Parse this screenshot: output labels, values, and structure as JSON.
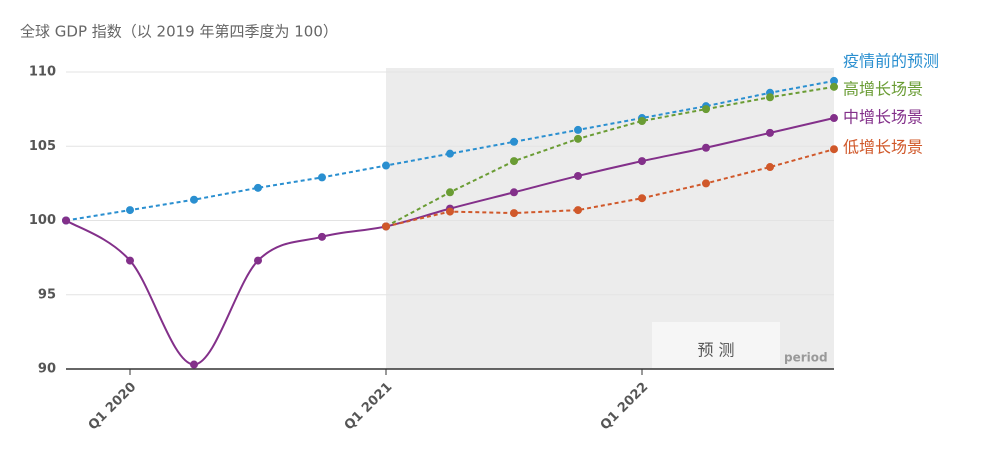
{
  "chart_data": {
    "type": "line",
    "title": "全球 GDP 指数（以 2019 年第四季度为 100）",
    "categories": [
      null,
      "Q1 2020",
      null,
      null,
      null,
      "Q1 2021",
      null,
      null,
      null,
      "Q1 2022",
      null,
      null,
      null
    ],
    "series": [
      {
        "name": "疫情前的预测",
        "color": "#2a8fd0",
        "dashed": true,
        "smooth": false,
        "values": [
          100,
          100.7,
          101.4,
          102.2,
          102.9,
          103.7,
          104.5,
          105.3,
          106.1,
          106.9,
          107.7,
          108.6,
          109.4
        ]
      },
      {
        "name": "高增长场景",
        "color": "#6a9c34",
        "dashed": true,
        "smooth": false,
        "values": [
          null,
          null,
          null,
          null,
          null,
          99.6,
          101.9,
          104.0,
          105.5,
          106.7,
          107.5,
          108.3,
          109.0
        ]
      },
      {
        "name": "中增长场景",
        "color": "#83308a",
        "dashed": false,
        "smooth": true,
        "values": [
          100,
          97.3,
          90.3,
          97.3,
          98.9,
          99.6,
          100.8,
          101.9,
          103.0,
          104.0,
          104.9,
          105.9,
          106.9
        ]
      },
      {
        "name": "低增长场景",
        "color": "#d0582a",
        "dashed": true,
        "smooth": false,
        "values": [
          null,
          null,
          null,
          null,
          null,
          99.6,
          100.6,
          100.5,
          100.7,
          101.5,
          102.5,
          103.6,
          104.8
        ]
      }
    ],
    "ylim": [
      90,
      110
    ],
    "yticks": [
      90,
      95,
      100,
      105,
      110
    ],
    "grid": true,
    "shaded_region": {
      "label": "预 测",
      "from_index": 5
    },
    "annotations": [
      "period"
    ]
  }
}
